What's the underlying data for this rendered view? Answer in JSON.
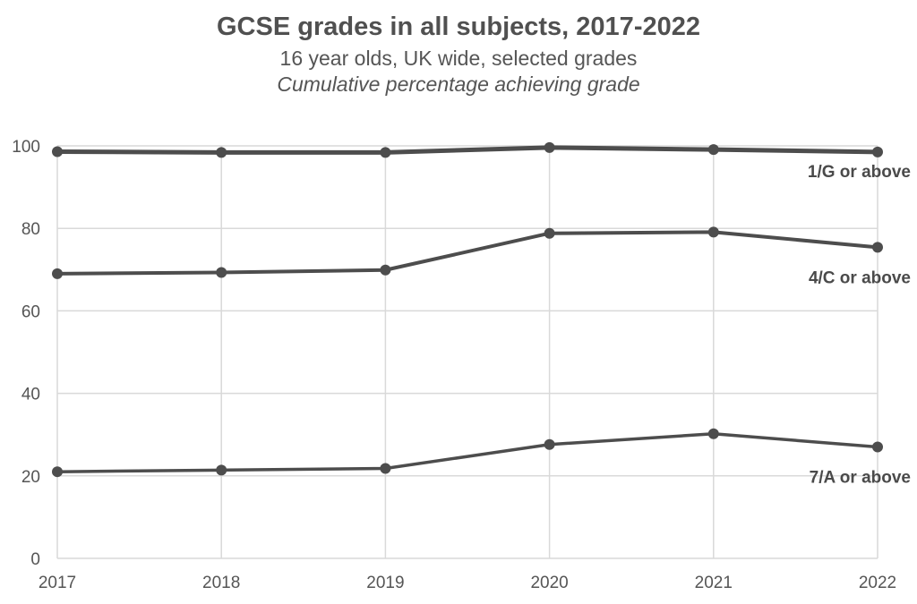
{
  "chart_data": {
    "type": "line",
    "title": "GCSE grades in all subjects, 2017-2022",
    "subtitle": "16 year olds, UK wide, selected grades",
    "subtitle2": "Cumulative percentage achieving grade",
    "x": [
      "2017",
      "2018",
      "2019",
      "2020",
      "2021",
      "2022"
    ],
    "ylim": [
      0,
      100
    ],
    "yticks": [
      0,
      20,
      40,
      60,
      80,
      100
    ],
    "grid": true,
    "legend": "direct labels at right",
    "series": [
      {
        "name": "1/G or above",
        "values": [
          98.6,
          98.4,
          98.4,
          99.6,
          99.1,
          98.5
        ],
        "color": "#4d4d4d"
      },
      {
        "name": "4/C or above",
        "values": [
          69.0,
          69.3,
          69.9,
          78.8,
          79.1,
          75.4
        ],
        "color": "#4d4d4d"
      },
      {
        "name": "7/A or above",
        "values": [
          21.0,
          21.4,
          21.8,
          27.6,
          30.2,
          27.0
        ],
        "color": "#4d4d4d"
      }
    ]
  }
}
